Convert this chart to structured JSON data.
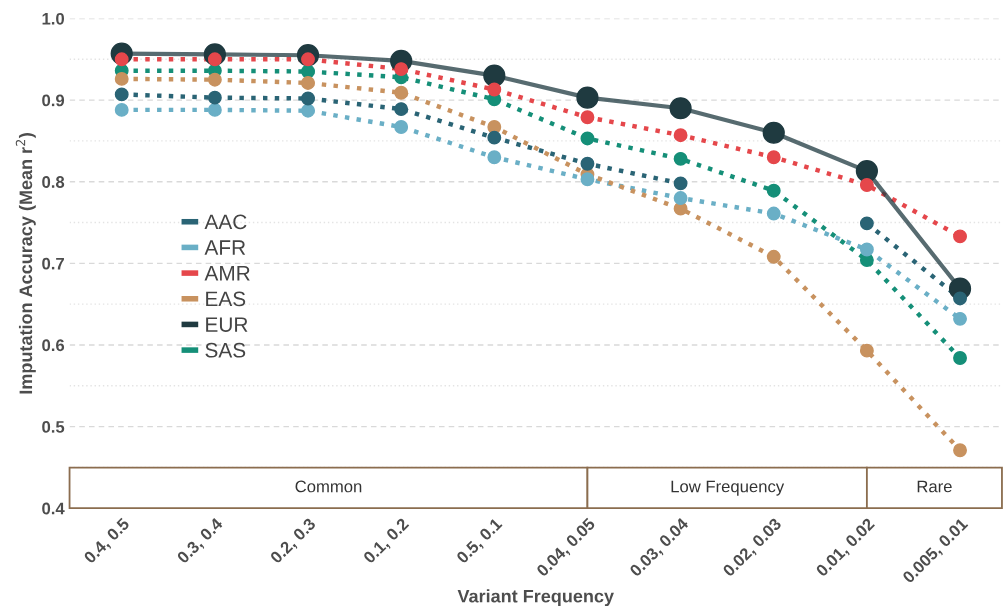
{
  "chart_data": {
    "type": "line",
    "xlabel": "Variant Frequency",
    "ylabel": "Imputation Accuracy (Mean r$^{2}$)",
    "categories": [
      "0.4, 0.5",
      "0.3, 0.4",
      "0.2, 0.3",
      "0.1, 0.2",
      "0.5, 0.1",
      "0.04, 0.05",
      "0.03, 0.04",
      "0.02, 0.03",
      "0.01, 0.02",
      "0.005, 0.01"
    ],
    "series": [
      {
        "name": "AAC",
        "color": "#2a6475",
        "line_style": "dotted",
        "values": [
          0.907,
          0.903,
          0.902,
          0.889,
          0.854,
          0.822,
          0.798,
          null,
          0.749,
          0.657
        ]
      },
      {
        "name": "AFR",
        "color": "#6aafc6",
        "line_style": "dotted",
        "values": [
          0.888,
          0.888,
          0.887,
          0.867,
          0.83,
          0.803,
          0.78,
          0.761,
          0.717,
          0.632
        ]
      },
      {
        "name": "AMR",
        "color": "#e5474b",
        "line_style": "dotted",
        "values": [
          0.95,
          0.95,
          0.95,
          0.938,
          0.913,
          0.879,
          0.857,
          0.83,
          0.796,
          0.733
        ]
      },
      {
        "name": "EAS",
        "color": "#c8925f",
        "line_style": "dotted",
        "values": [
          0.926,
          0.925,
          0.921,
          0.909,
          0.867,
          0.809,
          0.767,
          0.708,
          0.593,
          0.471
        ]
      },
      {
        "name": "EUR",
        "color": "#1f3a40",
        "line_style": "solid",
        "values": [
          0.957,
          0.956,
          0.955,
          0.948,
          0.93,
          0.903,
          0.89,
          0.86,
          0.813,
          0.669
        ]
      },
      {
        "name": "SAS",
        "color": "#158f78",
        "line_style": "dotted",
        "values": [
          0.936,
          0.936,
          0.935,
          0.928,
          0.901,
          0.853,
          0.828,
          0.789,
          0.704,
          0.584
        ]
      }
    ],
    "ylim": [
      0.4,
      1.0
    ],
    "yticks": [
      0.4,
      0.5,
      0.6,
      0.7,
      0.8,
      0.9,
      {
        "value": 1.0,
        "label": "1.0"
      }
    ],
    "bands": [
      {
        "axis": "x",
        "from": "0.4, 0.5",
        "to": "0.04, 0.05",
        "label": "Common",
        "color": "#8b6d4f"
      },
      {
        "axis": "x",
        "from": "0.04, 0.05",
        "to": "0.01, 0.02",
        "label": "Low Frequency",
        "color": "#8b6d4f"
      },
      {
        "axis": "x",
        "from": "0.01, 0.02",
        "to": "0.005, 0.01",
        "label": "Rare",
        "color": "#8b6d4f"
      }
    ],
    "grid": "y",
    "legend": "left",
    "marker": "circle"
  }
}
